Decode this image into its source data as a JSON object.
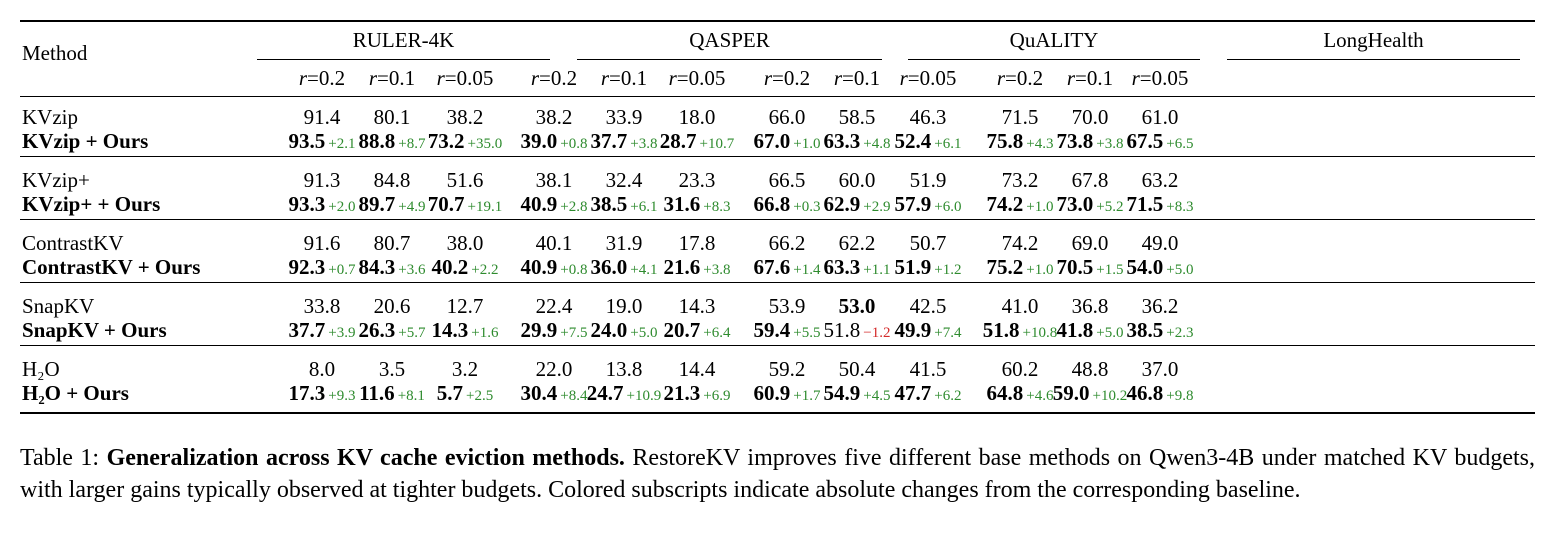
{
  "header": {
    "method_label": "Method",
    "groups": [
      "RULER-4K",
      "QASPER",
      "QuALITY",
      "LongHealth"
    ],
    "ratios": [
      "0.2",
      "0.1",
      "0.05"
    ],
    "ratio_var": "r",
    "ratio_eq": "="
  },
  "rows": [
    {
      "base": {
        "name": "KVzip",
        "values": [
          "91.4",
          "80.1",
          "38.2",
          "38.2",
          "33.9",
          "18.0",
          "66.0",
          "58.5",
          "46.3",
          "71.5",
          "70.0",
          "61.0"
        ]
      },
      "ours": {
        "name": "KVzip + Ours",
        "values": [
          "93.5",
          "88.8",
          "73.2",
          "39.0",
          "37.7",
          "28.7",
          "67.0",
          "63.3",
          "52.4",
          "75.8",
          "73.8",
          "67.5"
        ],
        "deltas": [
          "+2.1",
          "+8.7",
          "+35.0",
          "+0.8",
          "+3.8",
          "+10.7",
          "+1.0",
          "+4.8",
          "+6.1",
          "+4.3",
          "+3.8",
          "+6.5"
        ]
      }
    },
    {
      "base": {
        "name": "KVzip+",
        "values": [
          "91.3",
          "84.8",
          "51.6",
          "38.1",
          "32.4",
          "23.3",
          "66.5",
          "60.0",
          "51.9",
          "73.2",
          "67.8",
          "63.2"
        ]
      },
      "ours": {
        "name": "KVzip+ + Ours",
        "values": [
          "93.3",
          "89.7",
          "70.7",
          "40.9",
          "38.5",
          "31.6",
          "66.8",
          "62.9",
          "57.9",
          "74.2",
          "73.0",
          "71.5"
        ],
        "deltas": [
          "+2.0",
          "+4.9",
          "+19.1",
          "+2.8",
          "+6.1",
          "+8.3",
          "+0.3",
          "+2.9",
          "+6.0",
          "+1.0",
          "+5.2",
          "+8.3"
        ]
      }
    },
    {
      "base": {
        "name": "ContrastKV",
        "values": [
          "91.6",
          "80.7",
          "38.0",
          "40.1",
          "31.9",
          "17.8",
          "66.2",
          "62.2",
          "50.7",
          "74.2",
          "69.0",
          "49.0"
        ]
      },
      "ours": {
        "name": "ContrastKV + Ours",
        "values": [
          "92.3",
          "84.3",
          "40.2",
          "40.9",
          "36.0",
          "21.6",
          "67.6",
          "63.3",
          "51.9",
          "75.2",
          "70.5",
          "54.0"
        ],
        "deltas": [
          "+0.7",
          "+3.6",
          "+2.2",
          "+0.8",
          "+4.1",
          "+3.8",
          "+1.4",
          "+1.1",
          "+1.2",
          "+1.0",
          "+1.5",
          "+5.0"
        ]
      }
    },
    {
      "base": {
        "name": "SnapKV",
        "values": [
          "33.8",
          "20.6",
          "12.7",
          "22.4",
          "19.0",
          "14.3",
          "53.9",
          "53.0",
          "42.5",
          "41.0",
          "36.8",
          "36.2"
        ]
      },
      "ours": {
        "name": "SnapKV + Ours",
        "values": [
          "37.7",
          "26.3",
          "14.3",
          "29.9",
          "24.0",
          "20.7",
          "59.4",
          "51.8",
          "49.9",
          "51.8",
          "41.8",
          "38.5"
        ],
        "deltas": [
          "+3.9",
          "+5.7",
          "+1.6",
          "+7.5",
          "+5.0",
          "+6.4",
          "+5.5",
          "−1.2",
          "+7.4",
          "+10.8",
          "+5.0",
          "+2.3"
        ]
      }
    },
    {
      "base": {
        "name": "H₂O",
        "values": [
          "8.0",
          "3.5",
          "3.2",
          "22.0",
          "13.8",
          "14.4",
          "59.2",
          "50.4",
          "41.5",
          "60.2",
          "48.8",
          "37.0"
        ]
      },
      "ours": {
        "name": "H₂O + Ours",
        "values": [
          "17.3",
          "11.6",
          "5.7",
          "30.4",
          "24.7",
          "21.3",
          "60.9",
          "54.9",
          "47.7",
          "64.8",
          "59.0",
          "46.8"
        ],
        "deltas": [
          "+9.3",
          "+8.1",
          "+2.5",
          "+8.4",
          "+10.9",
          "+6.9",
          "+1.7",
          "+4.5",
          "+6.2",
          "+4.6",
          "+10.2",
          "+9.8"
        ]
      }
    }
  ],
  "caption": {
    "prefix": "Table 1: ",
    "bold": "Generalization across KV cache eviction methods.",
    "rest": " RestoreKV improves five different base methods on Qwen3-4B under matched KV budgets, with larger gains typically observed at tighter budgets. Colored subscripts indicate absolute changes from the corresponding baseline."
  }
}
